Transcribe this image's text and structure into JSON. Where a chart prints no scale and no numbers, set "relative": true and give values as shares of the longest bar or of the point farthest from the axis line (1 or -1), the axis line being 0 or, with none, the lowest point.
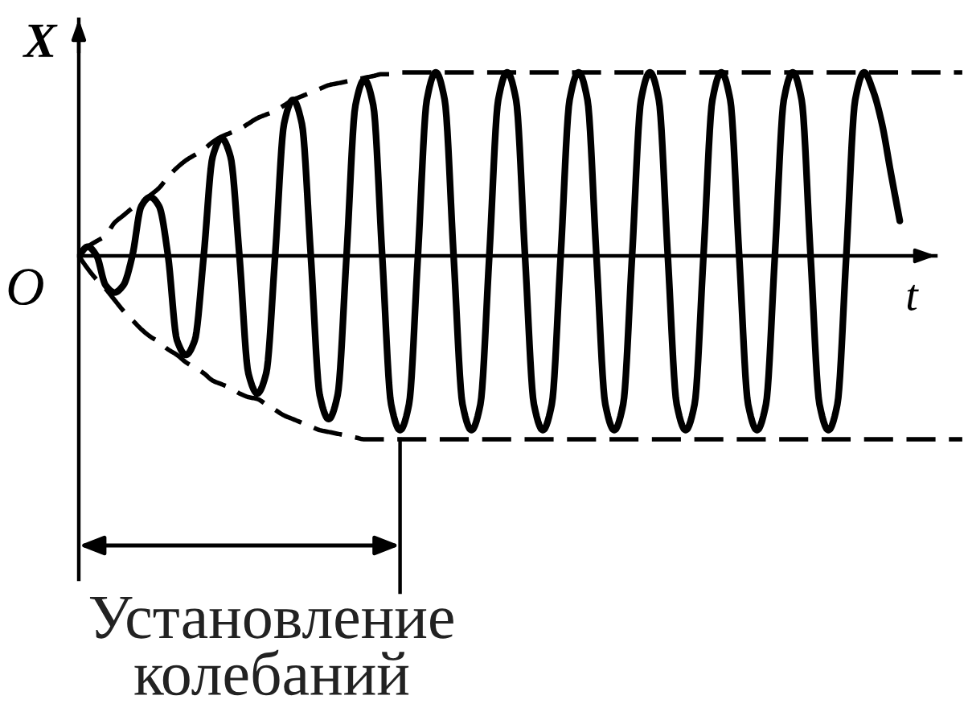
{
  "chart_data": {
    "type": "line",
    "relative": true,
    "xlabel": "t",
    "ylabel": "X",
    "annotations": [
      "O",
      "Установление колебаний"
    ],
    "categories": [
      null,
      null,
      null,
      null,
      null,
      null,
      null,
      null,
      null,
      null,
      null,
      null,
      null,
      null,
      null,
      null,
      null,
      null,
      null,
      null,
      null,
      null,
      null,
      null,
      null,
      null,
      null,
      null,
      null,
      null,
      null,
      null,
      null,
      null,
      null,
      null,
      null,
      null,
      null,
      null,
      null,
      null,
      null,
      null,
      null,
      null,
      null,
      null,
      null,
      null,
      null,
      null,
      null,
      null,
      null,
      null,
      null,
      null,
      null,
      null,
      null,
      null,
      null,
      null,
      null,
      null,
      null,
      null,
      null,
      null,
      null,
      null,
      null,
      null,
      null,
      null,
      null,
      null,
      null,
      null,
      null,
      null,
      null,
      null,
      null,
      null,
      null,
      null,
      null,
      null,
      null,
      null,
      null,
      null,
      null,
      null,
      null,
      null,
      null,
      null
    ],
    "series": [
      {
        "color": "#000000",
        "line_style": "dashed",
        "values": [
          0,
          0.05,
          0.08,
          0.11,
          0.18,
          0.22,
          0.26,
          0.29,
          0.33,
          0.37,
          0.43,
          0.48,
          0.52,
          0.55,
          0.58,
          0.62,
          0.65,
          0.67,
          0.69,
          0.72,
          0.75,
          0.77,
          0.79,
          0.82,
          0.85,
          0.87,
          0.89,
          0.91,
          0.93,
          0.94,
          0.95,
          0.96,
          0.97,
          0.98,
          0.99,
          0.99,
          1,
          1,
          1,
          1,
          1,
          1,
          1,
          1,
          1,
          1,
          1,
          1,
          1,
          1,
          1,
          1,
          1,
          1,
          1,
          1,
          1,
          1,
          1,
          1,
          1,
          1,
          1,
          1,
          1,
          1,
          1,
          1,
          1,
          1,
          1,
          1,
          1,
          1,
          1,
          1,
          1,
          1,
          1,
          1,
          1,
          1,
          1,
          1,
          1,
          1,
          1,
          1,
          1,
          1,
          1,
          1,
          1,
          1,
          1,
          1,
          1,
          1,
          1,
          1
        ]
      },
      {
        "color": "#000000",
        "line_style": "dashed",
        "values": [
          0,
          -0.07,
          -0.13,
          -0.18,
          -0.24,
          -0.3,
          -0.35,
          -0.4,
          -0.44,
          -0.47,
          -0.51,
          -0.54,
          -0.58,
          -0.61,
          -0.64,
          -0.68,
          -0.7,
          -0.72,
          -0.75,
          -0.77,
          -0.78,
          -0.81,
          -0.84,
          -0.87,
          -0.89,
          -0.91,
          -0.93,
          -0.95,
          -0.96,
          -0.97,
          -0.98,
          -0.99,
          -1,
          -1,
          -1,
          -1,
          -1,
          -1,
          -1,
          -1,
          -1,
          -1,
          -1,
          -1,
          -1,
          -1,
          -1,
          -1,
          -1,
          -1,
          -1,
          -1,
          -1,
          -1,
          -1,
          -1,
          -1,
          -1,
          -1,
          -1,
          -1,
          -1,
          -1,
          -1,
          -1,
          -1,
          -1,
          -1,
          -1,
          -1,
          -1,
          -1,
          -1,
          -1,
          -1,
          -1,
          -1,
          -1,
          -1,
          -1,
          -1,
          -1,
          -1,
          -1,
          -1,
          -1,
          -1,
          -1,
          -1,
          -1,
          -1,
          -1,
          -1,
          -1,
          -1,
          -1,
          -1,
          -1,
          -1,
          -1
        ]
      },
      {
        "color": "#000000",
        "line_style": "solid",
        "values": [
          0,
          0.05,
          0,
          -0.16,
          -0.2,
          -0.16,
          0,
          0.27,
          0.32,
          0.27,
          0,
          -0.46,
          -0.54,
          -0.46,
          0,
          0.54,
          0.64,
          0.54,
          0,
          -0.64,
          -0.75,
          -0.64,
          0,
          0.72,
          0.85,
          0.72,
          0,
          -0.76,
          -0.89,
          -0.76,
          0,
          0.82,
          0.96,
          0.82,
          0,
          -0.81,
          -0.95,
          -0.81,
          0,
          0.85,
          1,
          0.85,
          0,
          -0.81,
          -0.95,
          -0.81,
          0,
          0.85,
          1,
          0.85,
          0,
          -0.81,
          -0.95,
          -0.81,
          0,
          0.85,
          1,
          0.85,
          0,
          -0.81,
          -0.95,
          -0.81,
          0,
          0.85,
          1,
          0.85,
          0,
          -0.81,
          -0.95,
          -0.81,
          0,
          0.85,
          1,
          0.85,
          0,
          -0.81,
          -0.95,
          -0.81,
          0,
          0.85,
          1,
          0.85,
          0,
          -0.81,
          -0.95,
          -0.81,
          0,
          0.85,
          1,
          0.9,
          0.72,
          0.45,
          0.19,
          null,
          null,
          null,
          null,
          null,
          null,
          null
        ]
      }
    ]
  }
}
